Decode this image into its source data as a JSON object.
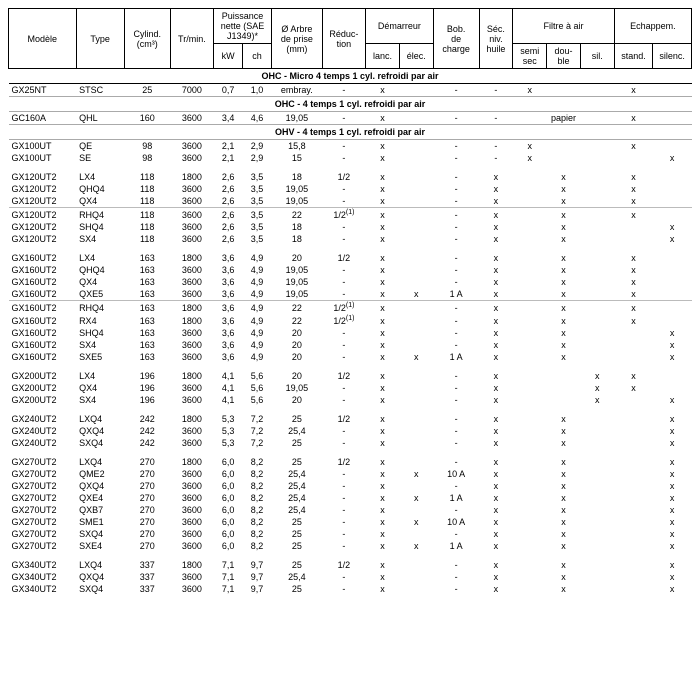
{
  "headers": {
    "top": [
      "Modèle",
      "Type",
      "Cylind.\n(cm³)",
      "Tr/min.",
      "Puissance\nnette (SAE\nJ1349)*",
      "Ø Arbre\nde prise\n(mm)",
      "Réduc-\ntion",
      "Démarreur",
      "Bob.\nde\ncharge",
      "Séc.\nniv.\nhuile",
      "Filtre à air",
      "Echappem."
    ],
    "sub": [
      "kW",
      "ch",
      "lanc.",
      "élec.",
      "semi\nsec",
      "dou-\nble",
      "sil.",
      "stand.",
      "silenc."
    ]
  },
  "sections": [
    {
      "title": "OHC - Micro 4 temps 1 cyl. refroidi par air",
      "soft": false,
      "groups": [
        {
          "rows": [
            {
              "m": "GX25NT",
              "t": "STSC",
              "cyl": "25",
              "rpm": "7000",
              "kw": "0,7",
              "ch": "1,0",
              "arb": "embray.",
              "red": "-",
              "dl": "x",
              "de": "",
              "bob": "-",
              "sec": "-",
              "fss": "x",
              "fdb": "",
              "fsi": "",
              "est": "x",
              "esi": ""
            }
          ]
        }
      ]
    },
    {
      "title": "OHC - 4 temps 1 cyl. refroidi par air",
      "soft": true,
      "groups": [
        {
          "rows": [
            {
              "m": "GC160A",
              "t": "QHL",
              "cyl": "160",
              "rpm": "3600",
              "kw": "3,4",
              "ch": "4,6",
              "arb": "19,05",
              "red": "-",
              "dl": "x",
              "de": "",
              "bob": "-",
              "sec": "-",
              "fss": "",
              "fdb": "papier",
              "fsi": "",
              "est": "x",
              "esi": ""
            }
          ]
        }
      ]
    },
    {
      "title": "OHV - 4 temps 1 cyl. refroidi par air",
      "soft": true,
      "groups": [
        {
          "rows": [
            {
              "m": "GX100UT",
              "t": "QE",
              "cyl": "98",
              "rpm": "3600",
              "kw": "2,1",
              "ch": "2,9",
              "arb": "15,8",
              "red": "-",
              "dl": "x",
              "de": "",
              "bob": "-",
              "sec": "-",
              "fss": "x",
              "fdb": "",
              "fsi": "",
              "est": "x",
              "esi": ""
            },
            {
              "m": "GX100UT",
              "t": "SE",
              "cyl": "98",
              "rpm": "3600",
              "kw": "2,1",
              "ch": "2,9",
              "arb": "15",
              "red": "-",
              "dl": "x",
              "de": "",
              "bob": "-",
              "sec": "-",
              "fss": "x",
              "fdb": "",
              "fsi": "",
              "est": "",
              "esi": "x"
            }
          ]
        },
        {
          "rows": [
            {
              "m": "GX120UT2",
              "t": "LX4",
              "cyl": "118",
              "rpm": "1800",
              "kw": "2,6",
              "ch": "3,5",
              "arb": "18",
              "red": "1/2",
              "dl": "x",
              "de": "",
              "bob": "-",
              "sec": "x",
              "fss": "",
              "fdb": "x",
              "fsi": "",
              "est": "x",
              "esi": ""
            },
            {
              "m": "GX120UT2",
              "t": "QHQ4",
              "cyl": "118",
              "rpm": "3600",
              "kw": "2,6",
              "ch": "3,5",
              "arb": "19,05",
              "red": "-",
              "dl": "x",
              "de": "",
              "bob": "-",
              "sec": "x",
              "fss": "",
              "fdb": "x",
              "fsi": "",
              "est": "x",
              "esi": ""
            },
            {
              "m": "GX120UT2",
              "t": "QX4",
              "cyl": "118",
              "rpm": "3600",
              "kw": "2,6",
              "ch": "3,5",
              "arb": "19,05",
              "red": "-",
              "dl": "x",
              "de": "",
              "bob": "-",
              "sec": "x",
              "fss": "",
              "fdb": "x",
              "fsi": "",
              "est": "x",
              "esi": ""
            }
          ]
        },
        {
          "sub": true,
          "rows": [
            {
              "m": "GX120UT2",
              "t": "RHQ4",
              "cyl": "118",
              "rpm": "3600",
              "kw": "2,6",
              "ch": "3,5",
              "arb": "22",
              "red": "1/2<sup>(1)</sup>",
              "dl": "x",
              "de": "",
              "bob": "-",
              "sec": "x",
              "fss": "",
              "fdb": "x",
              "fsi": "",
              "est": "x",
              "esi": ""
            },
            {
              "m": "GX120UT2",
              "t": "SHQ4",
              "cyl": "118",
              "rpm": "3600",
              "kw": "2,6",
              "ch": "3,5",
              "arb": "18",
              "red": "-",
              "dl": "x",
              "de": "",
              "bob": "-",
              "sec": "x",
              "fss": "",
              "fdb": "x",
              "fsi": "",
              "est": "",
              "esi": "x"
            },
            {
              "m": "GX120UT2",
              "t": "SX4",
              "cyl": "118",
              "rpm": "3600",
              "kw": "2,6",
              "ch": "3,5",
              "arb": "18",
              "red": "-",
              "dl": "x",
              "de": "",
              "bob": "-",
              "sec": "x",
              "fss": "",
              "fdb": "x",
              "fsi": "",
              "est": "",
              "esi": "x"
            }
          ]
        },
        {
          "rows": [
            {
              "m": "GX160UT2",
              "t": "LX4",
              "cyl": "163",
              "rpm": "1800",
              "kw": "3,6",
              "ch": "4,9",
              "arb": "20",
              "red": "1/2",
              "dl": "x",
              "de": "",
              "bob": "-",
              "sec": "x",
              "fss": "",
              "fdb": "x",
              "fsi": "",
              "est": "x",
              "esi": ""
            },
            {
              "m": "GX160UT2",
              "t": "QHQ4",
              "cyl": "163",
              "rpm": "3600",
              "kw": "3,6",
              "ch": "4,9",
              "arb": "19,05",
              "red": "-",
              "dl": "x",
              "de": "",
              "bob": "-",
              "sec": "x",
              "fss": "",
              "fdb": "x",
              "fsi": "",
              "est": "x",
              "esi": ""
            },
            {
              "m": "GX160UT2",
              "t": "QX4",
              "cyl": "163",
              "rpm": "3600",
              "kw": "3,6",
              "ch": "4,9",
              "arb": "19,05",
              "red": "-",
              "dl": "x",
              "de": "",
              "bob": "-",
              "sec": "x",
              "fss": "",
              "fdb": "x",
              "fsi": "",
              "est": "x",
              "esi": ""
            },
            {
              "m": "GX160UT2",
              "t": "QXE5",
              "cyl": "163",
              "rpm": "3600",
              "kw": "3,6",
              "ch": "4,9",
              "arb": "19,05",
              "red": "-",
              "dl": "x",
              "de": "x",
              "bob": "1 A",
              "sec": "x",
              "fss": "",
              "fdb": "x",
              "fsi": "",
              "est": "x",
              "esi": ""
            }
          ]
        },
        {
          "sub": true,
          "rows": [
            {
              "m": "GX160UT2",
              "t": "RHQ4",
              "cyl": "163",
              "rpm": "1800",
              "kw": "3,6",
              "ch": "4,9",
              "arb": "22",
              "red": "1/2<sup>(1)</sup>",
              "dl": "x",
              "de": "",
              "bob": "-",
              "sec": "x",
              "fss": "",
              "fdb": "x",
              "fsi": "",
              "est": "x",
              "esi": ""
            },
            {
              "m": "GX160UT2",
              "t": "RX4",
              "cyl": "163",
              "rpm": "1800",
              "kw": "3,6",
              "ch": "4,9",
              "arb": "22",
              "red": "1/2<sup>(1)</sup>",
              "dl": "x",
              "de": "",
              "bob": "-",
              "sec": "x",
              "fss": "",
              "fdb": "x",
              "fsi": "",
              "est": "x",
              "esi": ""
            },
            {
              "m": "GX160UT2",
              "t": "SHQ4",
              "cyl": "163",
              "rpm": "3600",
              "kw": "3,6",
              "ch": "4,9",
              "arb": "20",
              "red": "-",
              "dl": "x",
              "de": "",
              "bob": "-",
              "sec": "x",
              "fss": "",
              "fdb": "x",
              "fsi": "",
              "est": "",
              "esi": "x"
            },
            {
              "m": "GX160UT2",
              "t": "SX4",
              "cyl": "163",
              "rpm": "3600",
              "kw": "3,6",
              "ch": "4,9",
              "arb": "20",
              "red": "-",
              "dl": "x",
              "de": "",
              "bob": "-",
              "sec": "x",
              "fss": "",
              "fdb": "x",
              "fsi": "",
              "est": "",
              "esi": "x"
            },
            {
              "m": "GX160UT2",
              "t": "SXE5",
              "cyl": "163",
              "rpm": "3600",
              "kw": "3,6",
              "ch": "4,9",
              "arb": "20",
              "red": "-",
              "dl": "x",
              "de": "x",
              "bob": "1 A",
              "sec": "x",
              "fss": "",
              "fdb": "x",
              "fsi": "",
              "est": "",
              "esi": "x"
            }
          ]
        },
        {
          "rows": [
            {
              "m": "GX200UT2",
              "t": "LX4",
              "cyl": "196",
              "rpm": "1800",
              "kw": "4,1",
              "ch": "5,6",
              "arb": "20",
              "red": "1/2",
              "dl": "x",
              "de": "",
              "bob": "-",
              "sec": "x",
              "fss": "",
              "fdb": "",
              "fsi": "x",
              "est": "x",
              "esi": ""
            },
            {
              "m": "GX200UT2",
              "t": "QX4",
              "cyl": "196",
              "rpm": "3600",
              "kw": "4,1",
              "ch": "5,6",
              "arb": "19,05",
              "red": "-",
              "dl": "x",
              "de": "",
              "bob": "-",
              "sec": "x",
              "fss": "",
              "fdb": "",
              "fsi": "x",
              "est": "x",
              "esi": ""
            },
            {
              "m": "GX200UT2",
              "t": "SX4",
              "cyl": "196",
              "rpm": "3600",
              "kw": "4,1",
              "ch": "5,6",
              "arb": "20",
              "red": "-",
              "dl": "x",
              "de": "",
              "bob": "-",
              "sec": "x",
              "fss": "",
              "fdb": "",
              "fsi": "x",
              "est": "",
              "esi": "x"
            }
          ]
        },
        {
          "rows": [
            {
              "m": "GX240UT2",
              "t": "LXQ4",
              "cyl": "242",
              "rpm": "1800",
              "kw": "5,3",
              "ch": "7,2",
              "arb": "25",
              "red": "1/2",
              "dl": "x",
              "de": "",
              "bob": "-",
              "sec": "x",
              "fss": "",
              "fdb": "x",
              "fsi": "",
              "est": "",
              "esi": "x"
            },
            {
              "m": "GX240UT2",
              "t": "QXQ4",
              "cyl": "242",
              "rpm": "3600",
              "kw": "5,3",
              "ch": "7,2",
              "arb": "25,4",
              "red": "-",
              "dl": "x",
              "de": "",
              "bob": "-",
              "sec": "x",
              "fss": "",
              "fdb": "x",
              "fsi": "",
              "est": "",
              "esi": "x"
            },
            {
              "m": "GX240UT2",
              "t": "SXQ4",
              "cyl": "242",
              "rpm": "3600",
              "kw": "5,3",
              "ch": "7,2",
              "arb": "25",
              "red": "-",
              "dl": "x",
              "de": "",
              "bob": "-",
              "sec": "x",
              "fss": "",
              "fdb": "x",
              "fsi": "",
              "est": "",
              "esi": "x"
            }
          ]
        },
        {
          "rows": [
            {
              "m": "GX270UT2",
              "t": "LXQ4",
              "cyl": "270",
              "rpm": "1800",
              "kw": "6,0",
              "ch": "8,2",
              "arb": "25",
              "red": "1/2",
              "dl": "x",
              "de": "",
              "bob": "-",
              "sec": "x",
              "fss": "",
              "fdb": "x",
              "fsi": "",
              "est": "",
              "esi": "x"
            },
            {
              "m": "GX270UT2",
              "t": "QME2",
              "cyl": "270",
              "rpm": "3600",
              "kw": "6,0",
              "ch": "8,2",
              "arb": "25,4",
              "red": "-",
              "dl": "x",
              "de": "x",
              "bob": "10 A",
              "sec": "x",
              "fss": "",
              "fdb": "x",
              "fsi": "",
              "est": "",
              "esi": "x"
            },
            {
              "m": "GX270UT2",
              "t": "QXQ4",
              "cyl": "270",
              "rpm": "3600",
              "kw": "6,0",
              "ch": "8,2",
              "arb": "25,4",
              "red": "-",
              "dl": "x",
              "de": "",
              "bob": "-",
              "sec": "x",
              "fss": "",
              "fdb": "x",
              "fsi": "",
              "est": "",
              "esi": "x"
            },
            {
              "m": "GX270UT2",
              "t": "QXE4",
              "cyl": "270",
              "rpm": "3600",
              "kw": "6,0",
              "ch": "8,2",
              "arb": "25,4",
              "red": "-",
              "dl": "x",
              "de": "x",
              "bob": "1 A",
              "sec": "x",
              "fss": "",
              "fdb": "x",
              "fsi": "",
              "est": "",
              "esi": "x"
            },
            {
              "m": "GX270UT2",
              "t": "QXB7",
              "cyl": "270",
              "rpm": "3600",
              "kw": "6,0",
              "ch": "8,2",
              "arb": "25,4",
              "red": "-",
              "dl": "x",
              "de": "",
              "bob": "-",
              "sec": "x",
              "fss": "",
              "fdb": "x",
              "fsi": "",
              "est": "",
              "esi": "x"
            },
            {
              "m": "GX270UT2",
              "t": "SME1",
              "cyl": "270",
              "rpm": "3600",
              "kw": "6,0",
              "ch": "8,2",
              "arb": "25",
              "red": "-",
              "dl": "x",
              "de": "x",
              "bob": "10 A",
              "sec": "x",
              "fss": "",
              "fdb": "x",
              "fsi": "",
              "est": "",
              "esi": "x"
            },
            {
              "m": "GX270UT2",
              "t": "SXQ4",
              "cyl": "270",
              "rpm": "3600",
              "kw": "6,0",
              "ch": "8,2",
              "arb": "25",
              "red": "-",
              "dl": "x",
              "de": "",
              "bob": "-",
              "sec": "x",
              "fss": "",
              "fdb": "x",
              "fsi": "",
              "est": "",
              "esi": "x"
            },
            {
              "m": "GX270UT2",
              "t": "SXE4",
              "cyl": "270",
              "rpm": "3600",
              "kw": "6,0",
              "ch": "8,2",
              "arb": "25",
              "red": "-",
              "dl": "x",
              "de": "x",
              "bob": "1 A",
              "sec": "x",
              "fss": "",
              "fdb": "x",
              "fsi": "",
              "est": "",
              "esi": "x"
            }
          ]
        },
        {
          "rows": [
            {
              "m": "GX340UT2",
              "t": "LXQ4",
              "cyl": "337",
              "rpm": "1800",
              "kw": "7,1",
              "ch": "9,7",
              "arb": "25",
              "red": "1/2",
              "dl": "x",
              "de": "",
              "bob": "-",
              "sec": "x",
              "fss": "",
              "fdb": "x",
              "fsi": "",
              "est": "",
              "esi": "x"
            },
            {
              "m": "GX340UT2",
              "t": "QXQ4",
              "cyl": "337",
              "rpm": "3600",
              "kw": "7,1",
              "ch": "9,7",
              "arb": "25,4",
              "red": "-",
              "dl": "x",
              "de": "",
              "bob": "-",
              "sec": "x",
              "fss": "",
              "fdb": "x",
              "fsi": "",
              "est": "",
              "esi": "x"
            },
            {
              "m": "GX340UT2",
              "t": "SXQ4",
              "cyl": "337",
              "rpm": "3600",
              "kw": "7,1",
              "ch": "9,7",
              "arb": "25",
              "red": "-",
              "dl": "x",
              "de": "",
              "bob": "-",
              "sec": "x",
              "fss": "",
              "fdb": "x",
              "fsi": "",
              "est": "",
              "esi": "x"
            }
          ]
        }
      ]
    }
  ]
}
